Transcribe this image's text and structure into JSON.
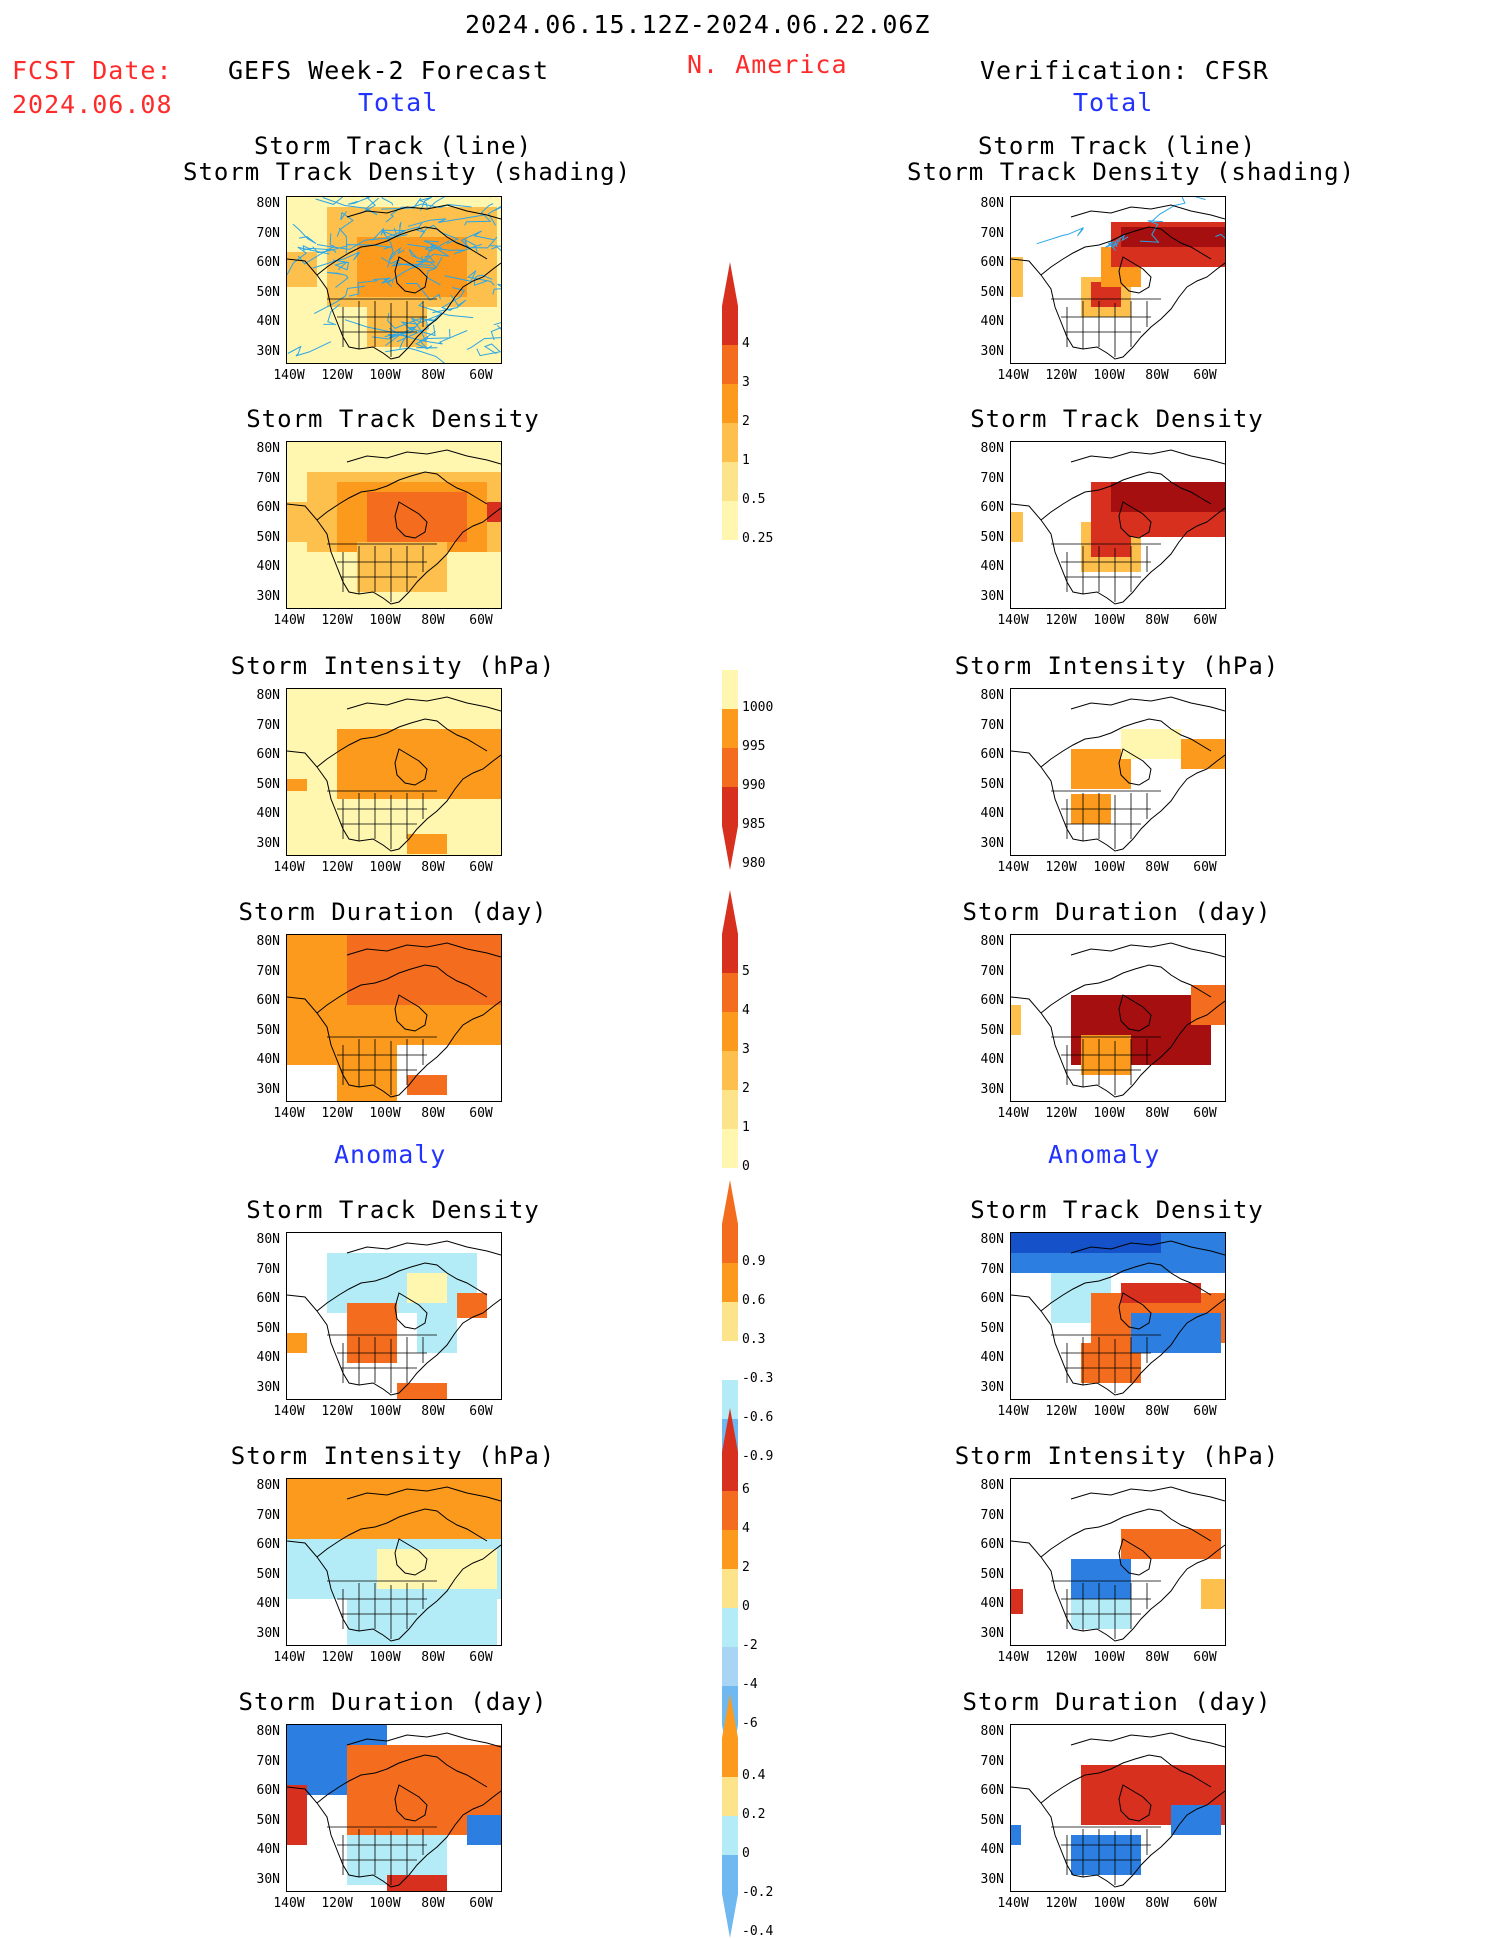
{
  "header": {
    "date_range": "2024.06.15.12Z-2024.06.22.06Z",
    "fcst_label": "FCST Date:",
    "fcst_date": "2024.06.08",
    "left_title": "GEFS Week-2 Forecast",
    "region": "N. America",
    "right_title": "Verification: CFSR",
    "total_left": "Total",
    "total_right": "Total",
    "anomaly_left": "Anomaly",
    "anomaly_right": "Anomaly"
  },
  "panel_titles": {
    "track_line": "Storm Track (line)",
    "track_shading": "Storm Track Density (shading)",
    "density": "Storm Track Density",
    "intensity": "Storm Intensity (hPa)",
    "duration": "Storm Duration (day)"
  },
  "axes": {
    "lat_labels": [
      "80N",
      "70N",
      "60N",
      "50N",
      "40N",
      "30N"
    ],
    "lon_labels": [
      "140W",
      "120W",
      "100W",
      "80W",
      "60W"
    ]
  },
  "colorbars": {
    "density_total": [
      "4",
      "3",
      "2",
      "1",
      "0.5",
      "0.25"
    ],
    "intensity_total": [
      "1000",
      "995",
      "990",
      "985",
      "980"
    ],
    "duration_total": [
      "5",
      "4",
      "3",
      "2",
      "1",
      "0"
    ],
    "density_anom": [
      "0.9",
      "0.6",
      "0.3",
      "-0.3",
      "-0.6",
      "-0.9"
    ],
    "intensity_anom": [
      "6",
      "4",
      "2",
      "0",
      "-2",
      "-4",
      "-6"
    ],
    "duration_anom": [
      "0.4",
      "0.2",
      "0",
      "-0.2",
      "-0.4"
    ]
  },
  "colors": {
    "dark_red": "#a50f0f",
    "red": "#d7301f",
    "orange_red": "#f46d1f",
    "orange": "#fb9a1c",
    "light_orange": "#fdc04d",
    "yellow": "#fff6b0",
    "light_blue": "#b3ecf7",
    "mid_blue": "#6fb8f0",
    "blue": "#2c7fe0",
    "dark_blue": "#1552c9",
    "track_blue": "#2aa6e8"
  }
}
